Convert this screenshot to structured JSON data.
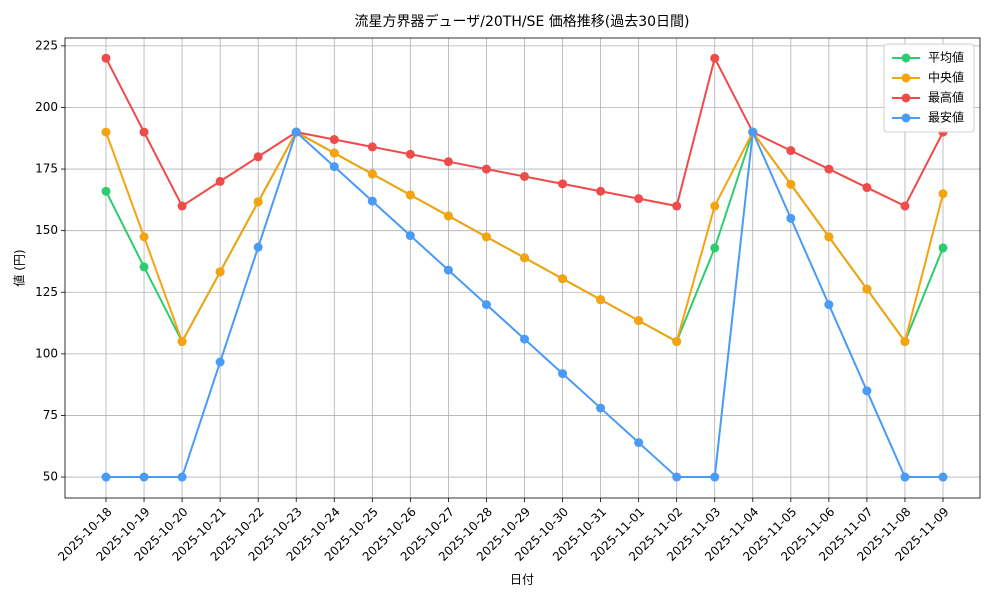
{
  "chart_data": {
    "type": "line",
    "title": "流星方界器デューザ/20TH/SE 価格推移(過去30日間)",
    "x_label": "日付",
    "y_label": "値 (円)",
    "categories": [
      "2025-10-18",
      "2025-10-19",
      "2025-10-20",
      "2025-10-21",
      "2025-10-22",
      "2025-10-23",
      "2025-10-24",
      "2025-10-25",
      "2025-10-26",
      "2025-10-27",
      "2025-10-28",
      "2025-10-29",
      "2025-10-30",
      "2025-10-31",
      "2025-11-01",
      "2025-11-02",
      "2025-11-03",
      "2025-11-04",
      "2025-11-05",
      "2025-11-06",
      "2025-11-07",
      "2025-11-08",
      "2025-11-09"
    ],
    "series": [
      {
        "name": "平均値",
        "color": "#2ecc71",
        "values": [
          166,
          135.3,
          105,
          133.3,
          161.7,
          190,
          181.5,
          173,
          164.5,
          156,
          147.5,
          139,
          130.5,
          122,
          113.5,
          105,
          143,
          190,
          168.8,
          147.5,
          126.3,
          105,
          143
        ]
      },
      {
        "name": "中央値",
        "color": "#f5a30f",
        "values": [
          190,
          147.5,
          105,
          133.3,
          161.7,
          190,
          181.5,
          173,
          164.5,
          156,
          147.5,
          139,
          130.5,
          122,
          113.5,
          105,
          160,
          190,
          168.8,
          147.5,
          126.3,
          105,
          165
        ]
      },
      {
        "name": "最高値",
        "color": "#ef4b4b",
        "values": [
          220,
          190,
          160,
          170,
          180,
          190,
          187,
          184,
          181,
          178,
          175,
          172,
          169,
          166,
          163,
          160,
          220,
          190,
          182.5,
          175,
          167.5,
          160,
          190
        ]
      },
      {
        "name": "最安値",
        "color": "#4a9bf5",
        "values": [
          50,
          50,
          50,
          96.7,
          143.3,
          190,
          176,
          162,
          148,
          134,
          120,
          106,
          92,
          78,
          64,
          50,
          50,
          190,
          155,
          120,
          85,
          50,
          50
        ]
      }
    ],
    "ylim": [
      41.5,
      228.2
    ],
    "yticks": [
      50,
      75,
      100,
      125,
      150,
      175,
      200,
      225
    ],
    "grid": true,
    "legend": "upper right",
    "marker": "circle"
  }
}
